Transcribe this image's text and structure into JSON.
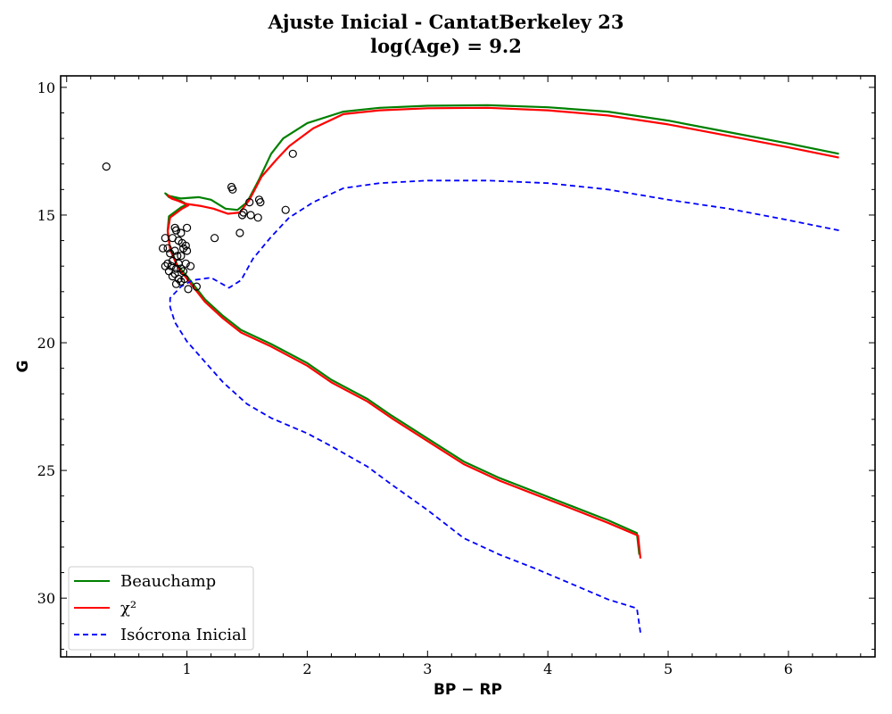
{
  "chart_data": {
    "type": "line",
    "title_line1": "Ajuste Inicial - CantatBerkeley 23",
    "title_line2": "log(Age) = 9.2",
    "xlabel": "BP − RP",
    "ylabel": "G",
    "xlim": [
      -0.05,
      6.72
    ],
    "ylim": [
      32.3,
      9.55
    ],
    "y_inverted": true,
    "x_ticks": [
      1,
      2,
      3,
      4,
      5,
      6
    ],
    "y_ticks": [
      10,
      15,
      20,
      25,
      30
    ],
    "x_tick_labels": [
      "1",
      "2",
      "3",
      "4",
      "5",
      "6"
    ],
    "y_tick_labels": [
      "10",
      "15",
      "20",
      "25",
      "30"
    ],
    "grid": false,
    "legend_position": "lower-left",
    "series": [
      {
        "name": "Beauchamp",
        "color": "#008000",
        "style": "solid",
        "points": [
          [
            4.76,
            28.3
          ],
          [
            4.74,
            27.45
          ],
          [
            4.5,
            26.95
          ],
          [
            4.2,
            26.4
          ],
          [
            3.9,
            25.85
          ],
          [
            3.6,
            25.3
          ],
          [
            3.3,
            24.65
          ],
          [
            3.0,
            23.75
          ],
          [
            2.7,
            22.85
          ],
          [
            2.5,
            22.2
          ],
          [
            2.2,
            21.45
          ],
          [
            2.0,
            20.8
          ],
          [
            1.7,
            20.05
          ],
          [
            1.45,
            19.5
          ],
          [
            1.3,
            18.95
          ],
          [
            1.15,
            18.3
          ],
          [
            1.0,
            17.4
          ],
          [
            0.92,
            16.95
          ],
          [
            0.86,
            16.3
          ],
          [
            0.84,
            15.6
          ],
          [
            0.85,
            15.05
          ],
          [
            0.95,
            14.7
          ],
          [
            1.0,
            14.58
          ],
          [
            0.95,
            14.45
          ],
          [
            0.85,
            14.3
          ],
          [
            0.82,
            14.15
          ],
          [
            0.85,
            14.25
          ],
          [
            0.95,
            14.35
          ],
          [
            1.1,
            14.3
          ],
          [
            1.2,
            14.4
          ],
          [
            1.32,
            14.75
          ],
          [
            1.42,
            14.8
          ],
          [
            1.5,
            14.5
          ],
          [
            1.6,
            13.6
          ],
          [
            1.7,
            12.6
          ],
          [
            1.8,
            12.0
          ],
          [
            2.0,
            11.4
          ],
          [
            2.3,
            10.95
          ],
          [
            2.6,
            10.8
          ],
          [
            3.0,
            10.72
          ],
          [
            3.5,
            10.7
          ],
          [
            4.0,
            10.78
          ],
          [
            4.5,
            10.95
          ],
          [
            5.0,
            11.3
          ],
          [
            5.5,
            11.75
          ],
          [
            6.0,
            12.2
          ],
          [
            6.42,
            12.6
          ]
        ]
      },
      {
        "name": "χ²",
        "color": "#ff0000",
        "style": "solid",
        "points": [
          [
            4.77,
            28.45
          ],
          [
            4.75,
            27.55
          ],
          [
            4.5,
            27.05
          ],
          [
            4.2,
            26.5
          ],
          [
            3.9,
            25.95
          ],
          [
            3.6,
            25.4
          ],
          [
            3.3,
            24.75
          ],
          [
            3.0,
            23.85
          ],
          [
            2.7,
            22.95
          ],
          [
            2.5,
            22.3
          ],
          [
            2.2,
            21.55
          ],
          [
            2.0,
            20.9
          ],
          [
            1.7,
            20.15
          ],
          [
            1.45,
            19.6
          ],
          [
            1.3,
            19.05
          ],
          [
            1.15,
            18.4
          ],
          [
            1.0,
            17.5
          ],
          [
            0.92,
            17.0
          ],
          [
            0.86,
            16.35
          ],
          [
            0.84,
            15.65
          ],
          [
            0.86,
            15.1
          ],
          [
            0.96,
            14.75
          ],
          [
            1.01,
            14.62
          ],
          [
            0.96,
            14.5
          ],
          [
            0.87,
            14.35
          ],
          [
            0.84,
            14.22
          ],
          [
            0.88,
            14.35
          ],
          [
            0.98,
            14.55
          ],
          [
            1.12,
            14.65
          ],
          [
            1.22,
            14.75
          ],
          [
            1.34,
            14.95
          ],
          [
            1.44,
            14.9
          ],
          [
            1.52,
            14.4
          ],
          [
            1.62,
            13.5
          ],
          [
            1.75,
            12.8
          ],
          [
            1.85,
            12.3
          ],
          [
            2.05,
            11.6
          ],
          [
            2.3,
            11.05
          ],
          [
            2.6,
            10.9
          ],
          [
            3.0,
            10.82
          ],
          [
            3.5,
            10.8
          ],
          [
            4.0,
            10.9
          ],
          [
            4.5,
            11.1
          ],
          [
            5.0,
            11.45
          ],
          [
            5.5,
            11.9
          ],
          [
            6.0,
            12.35
          ],
          [
            6.42,
            12.75
          ]
        ]
      },
      {
        "name": "Isócrona Inicial",
        "color": "#0000ff",
        "style": "dashed",
        "points": [
          [
            4.77,
            31.35
          ],
          [
            4.74,
            30.4
          ],
          [
            4.5,
            30.05
          ],
          [
            4.2,
            29.45
          ],
          [
            3.9,
            28.85
          ],
          [
            3.6,
            28.3
          ],
          [
            3.3,
            27.65
          ],
          [
            3.0,
            26.55
          ],
          [
            2.7,
            25.55
          ],
          [
            2.5,
            24.85
          ],
          [
            2.2,
            24.05
          ],
          [
            2.0,
            23.55
          ],
          [
            1.7,
            22.95
          ],
          [
            1.5,
            22.4
          ],
          [
            1.3,
            21.55
          ],
          [
            1.15,
            20.75
          ],
          [
            1.0,
            19.95
          ],
          [
            0.9,
            19.2
          ],
          [
            0.86,
            18.6
          ],
          [
            0.86,
            18.25
          ],
          [
            0.95,
            17.8
          ],
          [
            1.05,
            17.55
          ],
          [
            1.2,
            17.45
          ],
          [
            1.35,
            17.85
          ],
          [
            1.45,
            17.55
          ],
          [
            1.55,
            16.7
          ],
          [
            1.7,
            15.85
          ],
          [
            1.85,
            15.1
          ],
          [
            2.05,
            14.5
          ],
          [
            2.3,
            13.95
          ],
          [
            2.6,
            13.75
          ],
          [
            3.0,
            13.65
          ],
          [
            3.5,
            13.65
          ],
          [
            4.0,
            13.75
          ],
          [
            4.5,
            14.0
          ],
          [
            5.0,
            14.4
          ],
          [
            5.5,
            14.75
          ],
          [
            6.0,
            15.2
          ],
          [
            6.42,
            15.6
          ]
        ]
      }
    ],
    "scatter": {
      "name": "stars",
      "marker": "open-circle",
      "color": "#000000",
      "points": [
        [
          0.33,
          13.1
        ],
        [
          1.88,
          12.6
        ],
        [
          1.37,
          13.9
        ],
        [
          1.38,
          14.0
        ],
        [
          1.52,
          14.5
        ],
        [
          1.6,
          14.4
        ],
        [
          1.61,
          14.5
        ],
        [
          1.82,
          14.8
        ],
        [
          1.47,
          14.9
        ],
        [
          1.46,
          15.0
        ],
        [
          1.53,
          15.0
        ],
        [
          1.59,
          15.1
        ],
        [
          1.44,
          15.7
        ],
        [
          1.23,
          15.9
        ],
        [
          0.9,
          15.5
        ],
        [
          0.91,
          15.6
        ],
        [
          0.95,
          15.7
        ],
        [
          1.0,
          15.5
        ],
        [
          0.82,
          15.9
        ],
        [
          0.88,
          15.9
        ],
        [
          0.93,
          16.0
        ],
        [
          0.96,
          16.1
        ],
        [
          0.99,
          16.2
        ],
        [
          0.84,
          16.3
        ],
        [
          0.9,
          16.4
        ],
        [
          0.97,
          16.3
        ],
        [
          1.0,
          16.4
        ],
        [
          0.8,
          16.3
        ],
        [
          0.86,
          16.5
        ],
        [
          0.92,
          16.6
        ],
        [
          0.95,
          16.6
        ],
        [
          0.88,
          16.8
        ],
        [
          0.84,
          16.9
        ],
        [
          0.93,
          16.9
        ],
        [
          0.99,
          16.9
        ],
        [
          0.82,
          17.0
        ],
        [
          0.87,
          17.0
        ],
        [
          0.91,
          17.1
        ],
        [
          0.95,
          17.1
        ],
        [
          1.03,
          17.0
        ],
        [
          0.85,
          17.2
        ],
        [
          0.9,
          17.3
        ],
        [
          0.97,
          17.2
        ],
        [
          0.88,
          17.4
        ],
        [
          0.93,
          17.5
        ],
        [
          0.98,
          17.5
        ],
        [
          0.91,
          17.7
        ],
        [
          0.95,
          17.6
        ],
        [
          1.08,
          17.8
        ],
        [
          1.01,
          17.9
        ]
      ]
    }
  }
}
